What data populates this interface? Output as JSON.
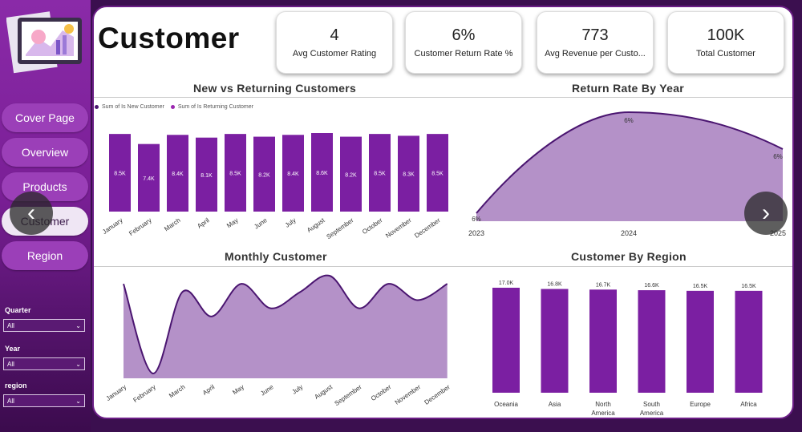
{
  "page": {
    "title": "Customer"
  },
  "nav": {
    "items": [
      {
        "label": "Cover Page"
      },
      {
        "label": "Overview"
      },
      {
        "label": "Products"
      },
      {
        "label": "Customer"
      },
      {
        "label": "Region"
      }
    ],
    "active": 3
  },
  "filters": [
    {
      "label": "Quarter",
      "value": "All"
    },
    {
      "label": "Year",
      "value": "All"
    },
    {
      "label": "region",
      "value": "All"
    }
  ],
  "kpis": [
    {
      "value": "4",
      "label": "Avg Customer Rating"
    },
    {
      "value": "6%",
      "label": "Customer Return Rate %"
    },
    {
      "value": "773",
      "label": "Avg Revenue per Custo..."
    },
    {
      "value": "100K",
      "label": "Total Customer"
    }
  ],
  "colors": {
    "accent": "#7b1fa2",
    "area": "#b491c8",
    "line": "#4a1570"
  },
  "chart_data": [
    {
      "type": "bar",
      "title": "New vs Returning Customers",
      "legend": [
        "Sum of Is New Customer",
        "Sum of Is Returning Customer"
      ],
      "categories": [
        "January",
        "February",
        "March",
        "April",
        "May",
        "June",
        "July",
        "August",
        "September",
        "October",
        "November",
        "December"
      ],
      "values": [
        8.5,
        7.4,
        8.4,
        8.1,
        8.5,
        8.2,
        8.4,
        8.6,
        8.2,
        8.5,
        8.3,
        8.5
      ],
      "labels": [
        "8.5K",
        "7.4K",
        "8.4K",
        "8.1K",
        "8.5K",
        "8.2K",
        "8.4K",
        "8.6K",
        "8.2K",
        "8.5K",
        "8.3K",
        "8.5K"
      ]
    },
    {
      "type": "area",
      "title": "Return Rate By Year",
      "categories": [
        "2023",
        "2024",
        "2025"
      ],
      "data_labels": [
        "6%",
        "6%",
        "6%"
      ]
    },
    {
      "type": "area",
      "title": "Monthly Customer",
      "categories": [
        "January",
        "February",
        "March",
        "April",
        "May",
        "June",
        "July",
        "August",
        "September",
        "October",
        "November",
        "December"
      ],
      "values": [
        8.5,
        7.4,
        8.4,
        8.1,
        8.5,
        8.2,
        8.4,
        8.6,
        8.2,
        8.5,
        8.3,
        8.5
      ]
    },
    {
      "type": "bar",
      "title": "Customer By Region",
      "categories": [
        "Oceania",
        "Asia",
        "North America",
        "South America",
        "Europe",
        "Africa"
      ],
      "values": [
        17.0,
        16.8,
        16.7,
        16.6,
        16.5,
        16.5
      ],
      "labels": [
        "17.0K",
        "16.8K",
        "16.7K",
        "16.6K",
        "16.5K",
        "16.5K"
      ]
    }
  ]
}
